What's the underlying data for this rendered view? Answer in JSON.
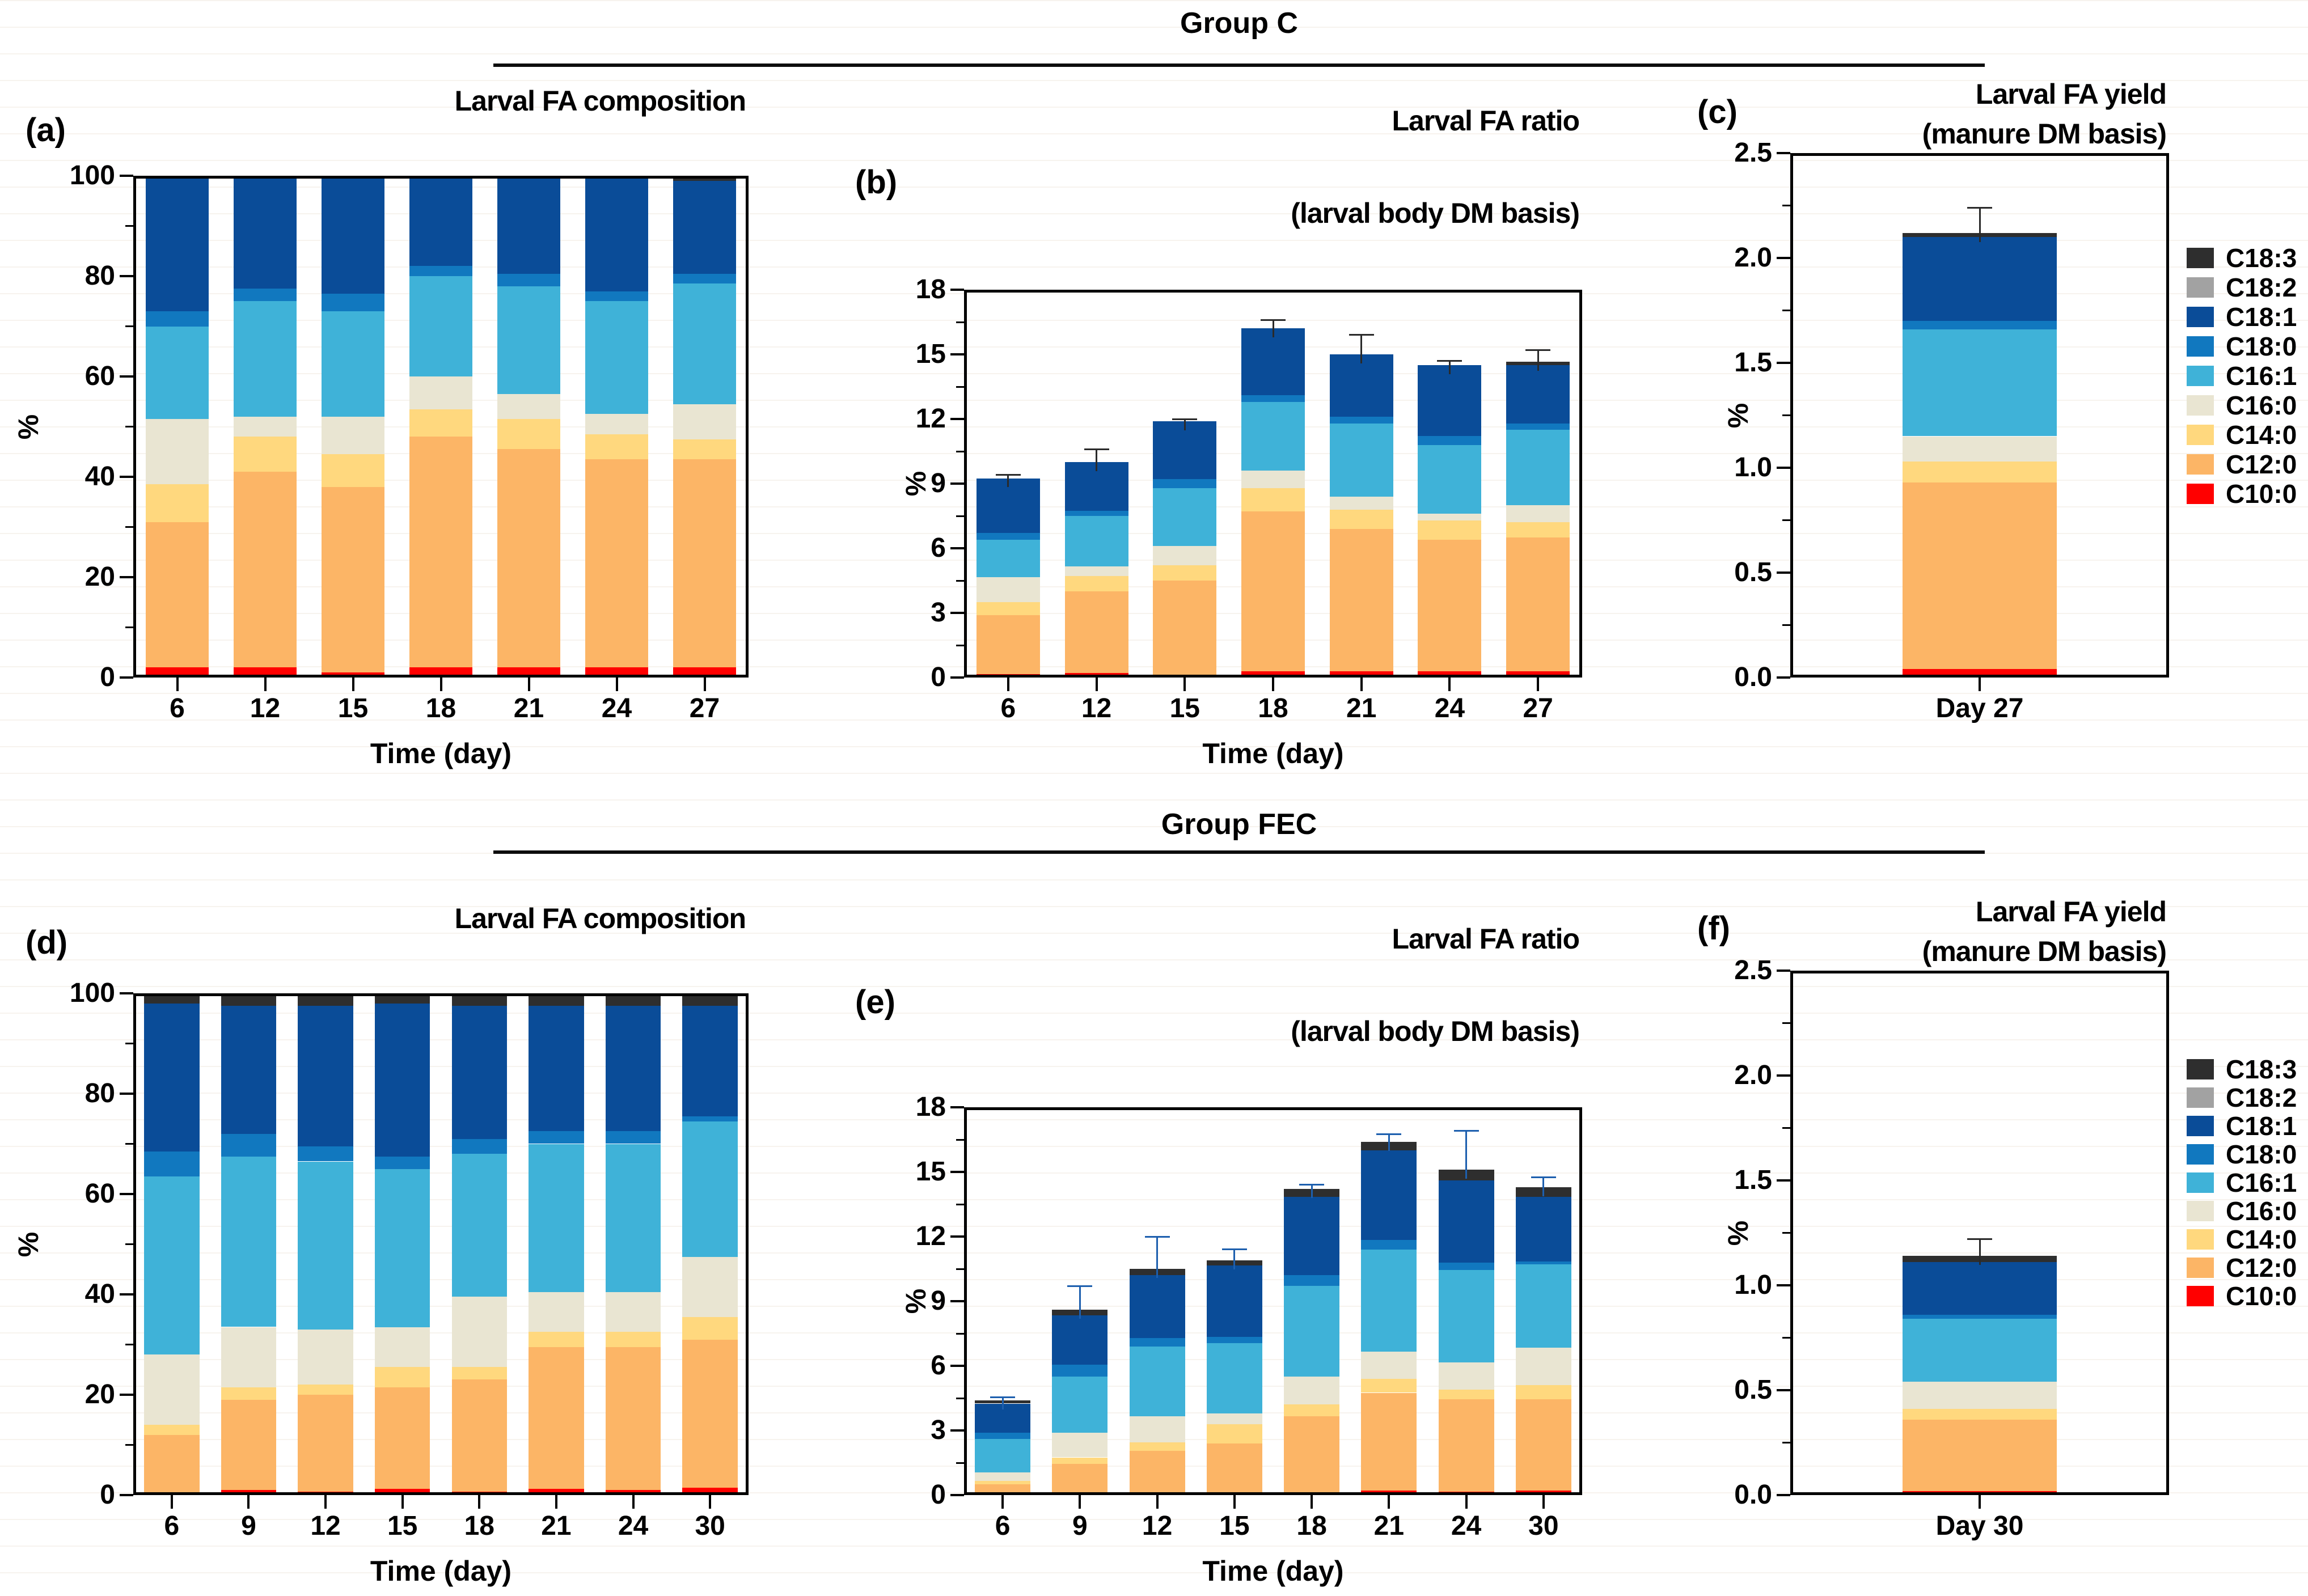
{
  "figure": {
    "groups": [
      {
        "name": "Group C"
      },
      {
        "name": "Group FEC"
      }
    ]
  },
  "colors": {
    "C18:3": "#2e2e2e",
    "C18:2": "#a2a2a2",
    "C18:1": "#0a4c98",
    "C18:0": "#1178bf",
    "C16:1": "#3fb2d8",
    "C16:0": "#e9e5d2",
    "C14:0": "#ffd87e",
    "C12:0": "#fcb566",
    "C10:0": "#ff0000"
  },
  "legend": {
    "entries": [
      {
        "label": "C18:3",
        "color": "#2e2e2e"
      },
      {
        "label": "C18:2",
        "color": "#a2a2a2"
      },
      {
        "label": "C18:1",
        "color": "#0a4c98"
      },
      {
        "label": "C18:0",
        "color": "#1178bf"
      },
      {
        "label": "C16:1",
        "color": "#3fb2d8"
      },
      {
        "label": "C16:0",
        "color": "#e9e5d2"
      },
      {
        "label": "C14:0",
        "color": "#ffd87e"
      },
      {
        "label": "C12:0",
        "color": "#fcb566"
      },
      {
        "label": "C10:0",
        "color": "#ff0000"
      }
    ]
  },
  "chart_data": [
    {
      "id": "a",
      "type": "bar",
      "stacked": true,
      "group": "Group C",
      "panel_label": "(a)",
      "title_lines": [
        "Larval FA composition"
      ],
      "xlabel": "Time (day)",
      "ylabel": "%",
      "ylim": [
        0,
        100
      ],
      "ytick_step": 20,
      "yminor_step": 10,
      "ytick_labels": [
        "0",
        "20",
        "40",
        "60",
        "80",
        "100"
      ],
      "categories": [
        "6",
        "12",
        "15",
        "18",
        "21",
        "24",
        "27"
      ],
      "series": [
        {
          "name": "C10:0",
          "values": [
            2,
            2,
            1,
            2,
            2,
            2,
            2
          ]
        },
        {
          "name": "C12:0",
          "values": [
            29,
            39,
            37,
            46,
            43.5,
            41.5,
            41.5
          ]
        },
        {
          "name": "C14:0",
          "values": [
            7.5,
            7,
            6.5,
            5.5,
            6,
            5,
            4
          ]
        },
        {
          "name": "C16:0",
          "values": [
            13,
            4,
            7.5,
            6.5,
            5,
            4,
            7
          ]
        },
        {
          "name": "C16:1",
          "values": [
            18.5,
            23,
            21,
            20,
            21.5,
            22.5,
            24
          ]
        },
        {
          "name": "C18:0",
          "values": [
            3,
            2.5,
            3.5,
            2,
            2.5,
            2,
            2
          ]
        },
        {
          "name": "C18:1",
          "values": [
            27,
            22.5,
            23.5,
            18,
            19.5,
            23,
            18.5
          ]
        },
        {
          "name": "C18:2",
          "values": [
            0,
            0,
            0,
            0,
            0,
            0,
            0
          ]
        },
        {
          "name": "C18:3",
          "values": [
            0,
            0,
            0,
            0,
            0,
            0,
            1
          ]
        }
      ],
      "errors": null,
      "error_color": "#2a2a2a"
    },
    {
      "id": "b",
      "type": "bar",
      "stacked": true,
      "group": "Group C",
      "panel_label": "(b)",
      "title_lines": [
        "Larval FA ratio",
        "(larval body DM basis)"
      ],
      "xlabel": "Time (day)",
      "ylabel": "%",
      "ylim": [
        0,
        18
      ],
      "ytick_step": 3,
      "yminor_step": 1.5,
      "ytick_labels": [
        "0",
        "3",
        "6",
        "9",
        "12",
        "15",
        "18"
      ],
      "categories": [
        "6",
        "12",
        "15",
        "18",
        "21",
        "24",
        "27"
      ],
      "series": [
        {
          "name": "C10:0",
          "values": [
            0.15,
            0.2,
            0.1,
            0.3,
            0.3,
            0.3,
            0.3
          ]
        },
        {
          "name": "C12:0",
          "values": [
            2.75,
            3.8,
            4.4,
            7.4,
            6.6,
            6.1,
            6.2
          ]
        },
        {
          "name": "C14:0",
          "values": [
            0.6,
            0.7,
            0.7,
            1.1,
            0.9,
            0.9,
            0.7
          ]
        },
        {
          "name": "C16:0",
          "values": [
            1.15,
            0.45,
            0.9,
            0.8,
            0.6,
            0.3,
            0.8
          ]
        },
        {
          "name": "C16:1",
          "values": [
            1.75,
            2.35,
            2.7,
            3.2,
            3.4,
            3.2,
            3.5
          ]
        },
        {
          "name": "C18:0",
          "values": [
            0.3,
            0.25,
            0.4,
            0.3,
            0.3,
            0.4,
            0.3
          ]
        },
        {
          "name": "C18:1",
          "values": [
            2.55,
            2.25,
            2.7,
            3.1,
            2.9,
            3.3,
            2.7
          ]
        },
        {
          "name": "C18:2",
          "values": [
            0,
            0,
            0,
            0,
            0,
            0,
            0
          ]
        },
        {
          "name": "C18:3",
          "values": [
            0,
            0,
            0,
            0,
            0,
            0,
            0.15
          ]
        }
      ],
      "errors": [
        0.15,
        0.6,
        0.1,
        0.4,
        0.9,
        0.2,
        0.55
      ],
      "error_color": "#2a2a2a"
    },
    {
      "id": "c",
      "type": "bar",
      "stacked": true,
      "group": "Group C",
      "panel_label": "(c)",
      "title_lines": [
        "Larval FA yield",
        "(manure DM basis)"
      ],
      "xlabel": null,
      "ylabel": "%",
      "ylim": [
        0,
        2.5
      ],
      "ytick_step": 0.5,
      "yminor_step": 0.25,
      "ytick_labels": [
        "0.0",
        "0.5",
        "1.0",
        "1.5",
        "2.0",
        "2.5"
      ],
      "categories": [
        "Day 27"
      ],
      "series": [
        {
          "name": "C10:0",
          "values": [
            0.04
          ]
        },
        {
          "name": "C12:0",
          "values": [
            0.89
          ]
        },
        {
          "name": "C14:0",
          "values": [
            0.1
          ]
        },
        {
          "name": "C16:0",
          "values": [
            0.12
          ]
        },
        {
          "name": "C16:1",
          "values": [
            0.51
          ]
        },
        {
          "name": "C18:0",
          "values": [
            0.04
          ]
        },
        {
          "name": "C18:1",
          "values": [
            0.4
          ]
        },
        {
          "name": "C18:2",
          "values": [
            0
          ]
        },
        {
          "name": "C18:3",
          "values": [
            0.02
          ]
        }
      ],
      "errors": [
        0.12
      ],
      "error_color": "#2a2a2a"
    },
    {
      "id": "d",
      "type": "bar",
      "stacked": true,
      "group": "Group FEC",
      "panel_label": "(d)",
      "title_lines": [
        "Larval FA composition"
      ],
      "xlabel": "Time (day)",
      "ylabel": "%",
      "ylim": [
        0,
        100
      ],
      "ytick_step": 20,
      "yminor_step": 10,
      "ytick_labels": [
        "0",
        "20",
        "40",
        "60",
        "80",
        "100"
      ],
      "categories": [
        "6",
        "9",
        "12",
        "15",
        "18",
        "21",
        "24",
        "30"
      ],
      "series": [
        {
          "name": "C10:0",
          "values": [
            0.5,
            1,
            0.7,
            1.2,
            0.7,
            1.2,
            1,
            1.5
          ]
        },
        {
          "name": "C12:0",
          "values": [
            11.5,
            18,
            19.3,
            20.3,
            22.3,
            28.3,
            28.5,
            29.5
          ]
        },
        {
          "name": "C14:0",
          "values": [
            2,
            2.5,
            2,
            4,
            2.5,
            3,
            3,
            4.5
          ]
        },
        {
          "name": "C16:0",
          "values": [
            14,
            12,
            11,
            8,
            14,
            8,
            8,
            12
          ]
        },
        {
          "name": "C16:1",
          "values": [
            35.5,
            34,
            33.5,
            31.5,
            28.5,
            29.5,
            29.5,
            27
          ]
        },
        {
          "name": "C18:0",
          "values": [
            5,
            4.5,
            3,
            2.5,
            3,
            2.5,
            2.5,
            1
          ]
        },
        {
          "name": "C18:1",
          "values": [
            29.5,
            25.5,
            28,
            30.5,
            26.5,
            25,
            25,
            22
          ]
        },
        {
          "name": "C18:2",
          "values": [
            0,
            0,
            0,
            0,
            0,
            0,
            0,
            0
          ]
        },
        {
          "name": "C18:3",
          "values": [
            2,
            2.5,
            2.5,
            2,
            2.5,
            2.5,
            2.5,
            2.5
          ]
        }
      ],
      "errors": null,
      "error_color": "#2a2a2a"
    },
    {
      "id": "e",
      "type": "bar",
      "stacked": true,
      "group": "Group FEC",
      "panel_label": "(e)",
      "title_lines": [
        "Larval FA ratio",
        "(larval body DM basis)"
      ],
      "xlabel": "Time (day)",
      "ylabel": "%",
      "ylim": [
        0,
        18
      ],
      "ytick_step": 3,
      "yminor_step": 1.5,
      "ytick_labels": [
        "0",
        "3",
        "6",
        "9",
        "12",
        "15",
        "18"
      ],
      "categories": [
        "6",
        "9",
        "12",
        "15",
        "18",
        "21",
        "24",
        "30"
      ],
      "series": [
        {
          "name": "C10:0",
          "values": [
            0.05,
            0.05,
            0.08,
            0.12,
            0.1,
            0.2,
            0.15,
            0.2
          ]
        },
        {
          "name": "C12:0",
          "values": [
            0.45,
            1.4,
            1.97,
            2.28,
            3.55,
            4.55,
            4.3,
            4.25
          ]
        },
        {
          "name": "C14:0",
          "values": [
            0.15,
            0.3,
            0.4,
            0.9,
            0.55,
            0.65,
            0.45,
            0.65
          ]
        },
        {
          "name": "C16:0",
          "values": [
            0.4,
            1.15,
            1.2,
            0.5,
            1.3,
            1.25,
            1.25,
            1.75
          ]
        },
        {
          "name": "C16:1",
          "values": [
            1.55,
            2.6,
            3.25,
            3.25,
            4.2,
            4.75,
            4.3,
            3.85
          ]
        },
        {
          "name": "C18:0",
          "values": [
            0.3,
            0.55,
            0.4,
            0.3,
            0.5,
            0.45,
            0.35,
            0.15
          ]
        },
        {
          "name": "C18:1",
          "values": [
            1.35,
            2.3,
            2.9,
            3.3,
            3.65,
            4.15,
            3.8,
            3
          ]
        },
        {
          "name": "C18:2",
          "values": [
            0,
            0,
            0,
            0,
            0,
            0,
            0,
            0
          ]
        },
        {
          "name": "C18:3",
          "values": [
            0.15,
            0.25,
            0.3,
            0.25,
            0.35,
            0.4,
            0.5,
            0.45
          ]
        }
      ],
      "errors": [
        0.15,
        1.1,
        1.5,
        0.5,
        0.2,
        0.35,
        1.8,
        0.45
      ],
      "error_color": "#1d5fae"
    },
    {
      "id": "f",
      "type": "bar",
      "stacked": true,
      "group": "Group FEC",
      "panel_label": "(f)",
      "title_lines": [
        "Larval FA yield",
        "(manure DM basis)"
      ],
      "xlabel": null,
      "ylabel": "%",
      "ylim": [
        0,
        2.5
      ],
      "ytick_step": 0.5,
      "yminor_step": 0.25,
      "ytick_labels": [
        "0.0",
        "0.5",
        "1.0",
        "1.5",
        "2.0",
        "2.5"
      ],
      "categories": [
        "Day 30"
      ],
      "series": [
        {
          "name": "C10:0",
          "values": [
            0.02
          ]
        },
        {
          "name": "C12:0",
          "values": [
            0.34
          ]
        },
        {
          "name": "C14:0",
          "values": [
            0.05
          ]
        },
        {
          "name": "C16:0",
          "values": [
            0.13
          ]
        },
        {
          "name": "C16:1",
          "values": [
            0.3
          ]
        },
        {
          "name": "C18:0",
          "values": [
            0.02
          ]
        },
        {
          "name": "C18:1",
          "values": [
            0.25
          ]
        },
        {
          "name": "C18:2",
          "values": [
            0
          ]
        },
        {
          "name": "C18:3",
          "values": [
            0.03
          ]
        }
      ],
      "errors": [
        0.08
      ],
      "error_color": "#2a2a2a"
    }
  ]
}
